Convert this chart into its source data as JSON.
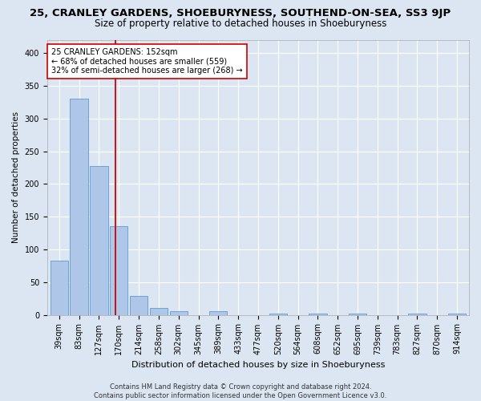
{
  "title1": "25, CRANLEY GARDENS, SHOEBURYNESS, SOUTHEND-ON-SEA, SS3 9JP",
  "title2": "Size of property relative to detached houses in Shoeburyness",
  "xlabel": "Distribution of detached houses by size in Shoeburyness",
  "ylabel": "Number of detached properties",
  "footnote": "Contains HM Land Registry data © Crown copyright and database right 2024.\nContains public sector information licensed under the Open Government Licence v3.0.",
  "categories": [
    "39sqm",
    "83sqm",
    "127sqm",
    "170sqm",
    "214sqm",
    "258sqm",
    "302sqm",
    "345sqm",
    "389sqm",
    "433sqm",
    "477sqm",
    "520sqm",
    "564sqm",
    "608sqm",
    "652sqm",
    "695sqm",
    "739sqm",
    "783sqm",
    "827sqm",
    "870sqm",
    "914sqm"
  ],
  "values": [
    83,
    330,
    228,
    135,
    29,
    10,
    5,
    0,
    5,
    0,
    0,
    2,
    0,
    2,
    0,
    2,
    0,
    0,
    2,
    0,
    2
  ],
  "bar_color": "#aec6e8",
  "bar_edge_color": "#5b9bd5",
  "vline_x": 2.82,
  "vline_color": "#cc0000",
  "annotation_text": "25 CRANLEY GARDENS: 152sqm\n← 68% of detached houses are smaller (559)\n32% of semi-detached houses are larger (268) →",
  "annotation_box_color": "#ffffff",
  "annotation_box_edge": "#cc0000",
  "ylim": [
    0,
    420
  ],
  "yticks": [
    0,
    50,
    100,
    150,
    200,
    250,
    300,
    350,
    400
  ],
  "bg_color": "#dce6f2",
  "fig_color": "#dce6f2",
  "grid_color": "#ffffff",
  "title1_fontsize": 9.5,
  "title2_fontsize": 8.5,
  "xlabel_fontsize": 8,
  "ylabel_fontsize": 7.5,
  "tick_fontsize": 7,
  "footnote_fontsize": 6
}
